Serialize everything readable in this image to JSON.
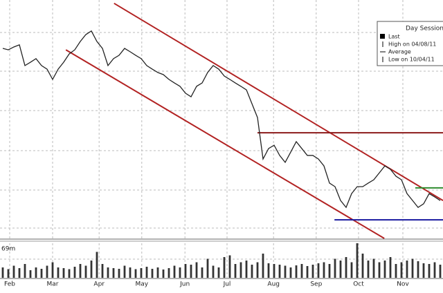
{
  "chart_data": {
    "type": "line",
    "legend": {
      "title": "Day Session",
      "items": [
        "Last",
        "High on 04/08/11",
        "Average",
        "Low on 10/04/11"
      ]
    },
    "volume_label": "69m",
    "x": [
      0,
      1,
      2,
      3,
      4,
      5,
      6,
      7,
      8,
      9,
      10,
      11,
      12,
      13,
      14,
      15,
      16,
      17,
      18,
      19,
      20,
      21,
      22,
      23,
      24,
      25,
      26,
      27,
      28,
      29,
      30,
      31,
      32,
      33,
      34,
      35,
      36,
      37,
      38,
      39,
      40,
      41,
      42,
      43,
      44,
      45,
      46,
      47,
      48,
      49,
      50,
      51,
      52,
      53,
      54,
      55,
      56,
      57,
      58,
      59,
      60,
      61,
      62,
      63,
      64,
      65,
      66,
      67,
      68,
      69,
      70,
      71,
      72,
      73,
      74,
      75,
      76,
      77,
      78,
      79
    ],
    "xlim": [
      0,
      80
    ],
    "xticks": [
      {
        "value": 1.75,
        "label": "Feb"
      },
      {
        "value": 9.5,
        "label": "Mar"
      },
      {
        "value": 17.9,
        "label": "Apr"
      },
      {
        "value": 25.6,
        "label": "May"
      },
      {
        "value": 33.4,
        "label": "Jun"
      },
      {
        "value": 41,
        "label": "Jul"
      },
      {
        "value": 49.4,
        "label": "Aug"
      },
      {
        "value": 57.1,
        "label": "Sep"
      },
      {
        "value": 64.75,
        "label": "Oct"
      },
      {
        "value": 72.75,
        "label": "Nov"
      }
    ],
    "ylim": [
      0,
      100
    ],
    "grid": true,
    "series": [
      {
        "color": "#222222",
        "values": [
          79.7,
          79.1,
          80.3,
          81.2,
          72.5,
          73.9,
          75.4,
          72.5,
          71.0,
          66.7,
          71.0,
          73.9,
          77.4,
          79.1,
          82.6,
          85.5,
          87.0,
          82.6,
          79.7,
          72.5,
          75.4,
          76.8,
          79.7,
          78.3,
          76.8,
          75.4,
          72.5,
          71.0,
          69.6,
          68.7,
          66.7,
          65.2,
          63.8,
          60.9,
          59.4,
          63.8,
          65.2,
          69.6,
          72.5,
          71.0,
          68.1,
          66.7,
          65.2,
          63.8,
          62.3,
          56.5,
          50.7,
          33.3,
          37.7,
          39.1,
          34.8,
          31.9,
          36.2,
          40.6,
          37.7,
          34.8,
          34.8,
          33.3,
          30.4,
          23.2,
          21.7,
          15.9,
          13.0,
          18.8,
          21.7,
          21.7,
          23.2,
          24.6,
          27.5,
          30.4,
          29.0,
          26.1,
          24.6,
          18.8,
          15.9,
          13.0,
          14.5,
          18.8,
          17.4,
          15.9
        ]
      }
    ],
    "volume": {
      "ylim": [
        0,
        100
      ],
      "color": "#333333",
      "values": [
        30,
        25,
        35,
        28,
        40,
        22,
        30,
        26,
        35,
        45,
        30,
        28,
        25,
        32,
        40,
        35,
        50,
        75,
        40,
        30,
        28,
        26,
        35,
        30,
        25,
        28,
        32,
        26,
        30,
        24,
        28,
        35,
        30,
        40,
        38,
        45,
        30,
        55,
        35,
        30,
        60,
        65,
        40,
        45,
        50,
        38,
        45,
        70,
        42,
        40,
        38,
        35,
        30,
        36,
        40,
        34,
        38,
        42,
        45,
        40,
        55,
        50,
        60,
        45,
        100,
        70,
        50,
        55,
        45,
        50,
        60,
        40,
        45,
        50,
        55,
        48,
        42,
        40,
        45,
        38
      ]
    },
    "trend_lines": [
      {
        "color": "#b22222",
        "x": [
          20.6,
          80
        ],
        "y": [
          98.6,
          15.9
        ]
      },
      {
        "color": "#b22222",
        "x": [
          11.9,
          69.4
        ],
        "y": [
          79.1,
          0
        ]
      },
      {
        "color": "#8b1a1a",
        "x": [
          46.5,
          80
        ],
        "y": [
          44.3,
          44.3
        ]
      },
      {
        "color": "#2e8b2e",
        "x": [
          75,
          80
        ],
        "y": [
          21.2,
          21.2
        ]
      },
      {
        "color": "#1a1aa0",
        "x": [
          60.4,
          80
        ],
        "y": [
          7.8,
          7.8
        ]
      }
    ]
  }
}
